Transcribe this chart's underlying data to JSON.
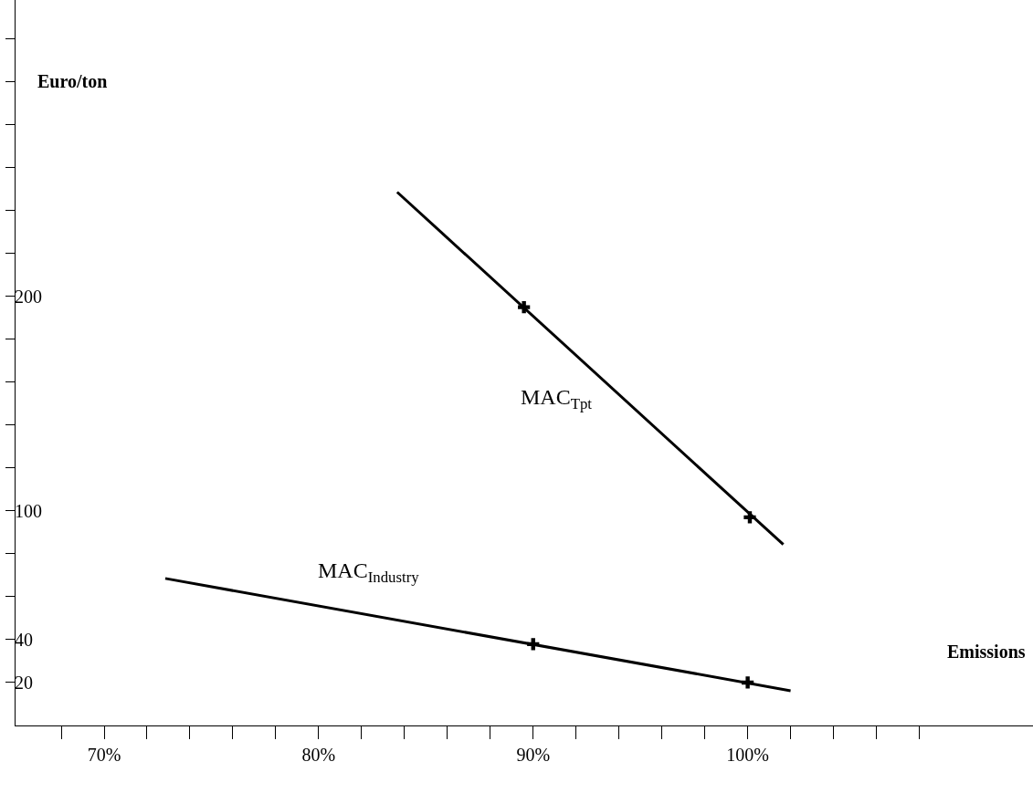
{
  "chart_data": {
    "type": "line",
    "xlabel": "Emissions",
    "ylabel": "Euro/ton",
    "series": [
      {
        "color": "#000000",
        "x": [
          83.66,
          101.66
        ],
        "values": [
          248.5,
          84.3
        ],
        "marker": "none"
      },
      {
        "color": "#000000",
        "x": [
          72.85,
          102
        ],
        "values": [
          68.5,
          16.2
        ],
        "marker": "none"
      },
      {
        "type": "scatter",
        "color": "#000000",
        "x": [
          89.57,
          100.1,
          90,
          100
        ],
        "values": [
          194.9,
          97,
          37.9,
          20
        ],
        "marker": "cross"
      }
    ],
    "annotations": [
      "MAC$_{Tpt}$",
      "MAC$_{Industry}$"
    ],
    "xlim": [
      65.87,
      113.3
    ],
    "xticks": [
      {
        "value": 68,
        "label": null
      },
      {
        "value": 70,
        "label": "70%"
      },
      {
        "value": 72,
        "label": null
      },
      {
        "value": 74,
        "label": null
      },
      {
        "value": 76,
        "label": null
      },
      {
        "value": 78,
        "label": null
      },
      {
        "value": 80,
        "label": "80%"
      },
      {
        "value": 82,
        "label": null
      },
      {
        "value": 84,
        "label": null
      },
      {
        "value": 86,
        "label": null
      },
      {
        "value": 88,
        "label": null
      },
      {
        "value": 90,
        "label": "90%"
      },
      {
        "value": 92,
        "label": null
      },
      {
        "value": 94,
        "label": null
      },
      {
        "value": 96,
        "label": null
      },
      {
        "value": 98,
        "label": null
      },
      {
        "value": 100,
        "label": "100%"
      },
      {
        "value": 102,
        "label": null
      },
      {
        "value": 104,
        "label": null
      },
      {
        "value": 106,
        "label": null
      },
      {
        "value": 108,
        "label": null
      }
    ],
    "ylim": [
      0,
      338
    ],
    "yticks": [
      {
        "value": 20,
        "label": "20"
      },
      {
        "value": 40,
        "label": "40"
      },
      {
        "value": 60,
        "label": null
      },
      {
        "value": 80,
        "label": null
      },
      {
        "value": 100,
        "label": "100"
      },
      {
        "value": 120,
        "label": null
      },
      {
        "value": 140,
        "label": null
      },
      {
        "value": 160,
        "label": null
      },
      {
        "value": 180,
        "label": null
      },
      {
        "value": 200,
        "label": "200"
      },
      {
        "value": 220,
        "label": null
      },
      {
        "value": 240,
        "label": null
      },
      {
        "value": 260,
        "label": null
      },
      {
        "value": 280,
        "label": null
      },
      {
        "value": 300,
        "label": null
      },
      {
        "value": 320,
        "label": null
      }
    ],
    "line_style": "solid"
  }
}
